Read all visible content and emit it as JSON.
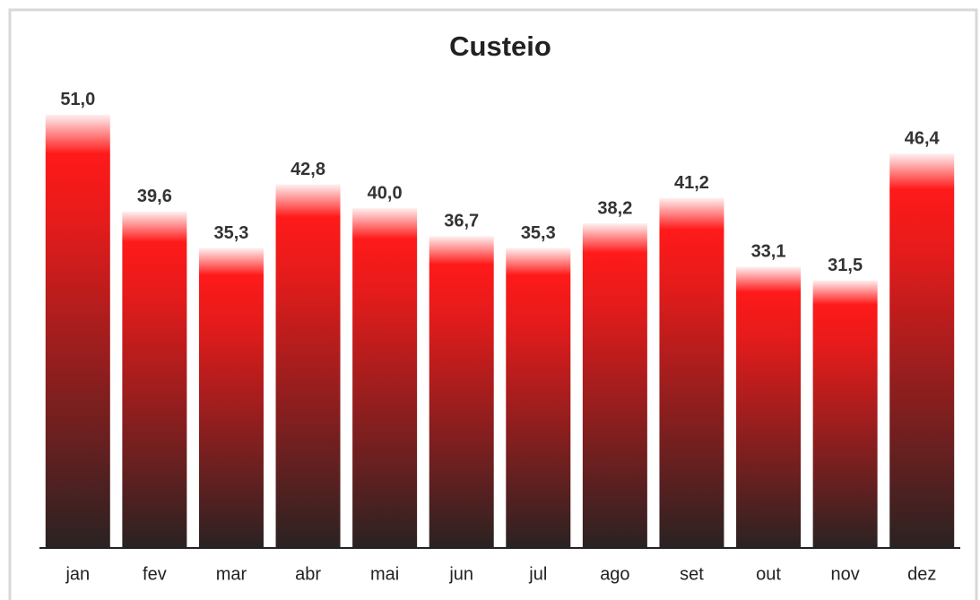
{
  "chart_data": {
    "type": "bar",
    "title": "Custeio",
    "categories": [
      "jan",
      "fev",
      "mar",
      "abr",
      "mai",
      "jun",
      "jul",
      "ago",
      "set",
      "out",
      "nov",
      "dez"
    ],
    "values": [
      51.0,
      39.6,
      35.3,
      42.8,
      40.0,
      36.7,
      35.3,
      38.2,
      41.2,
      33.1,
      31.5,
      46.4
    ],
    "value_labels": [
      "51,0",
      "39,6",
      "35,3",
      "42,8",
      "40,0",
      "36,7",
      "35,3",
      "38,2",
      "41,2",
      "33,1",
      "31,5",
      "46,4"
    ],
    "color": "#ff1a1a",
    "ylim": [
      0,
      55
    ]
  }
}
